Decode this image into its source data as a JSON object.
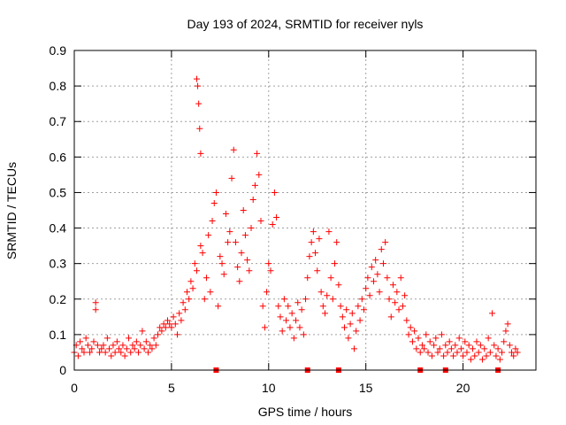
{
  "chart_data": {
    "type": "scatter",
    "title": "Day 193 of 2024, SRMTID for receiver nyls",
    "xlabel": "GPS time / hours",
    "ylabel": "SRMTID / TECUs",
    "xlim": [
      0,
      23.75
    ],
    "ylim": [
      0,
      0.9
    ],
    "xticks": [
      0,
      5,
      10,
      15,
      20
    ],
    "xtick_labels": [
      "0",
      "5",
      "10",
      "15",
      "20"
    ],
    "yticks": [
      0,
      0.1,
      0.2,
      0.3,
      0.4,
      0.5,
      0.6,
      0.7,
      0.8,
      0.9
    ],
    "ytick_labels": [
      "0",
      "0.1",
      "0.2",
      "0.3",
      "0.4",
      "0.5",
      "0.6",
      "0.7",
      "0.8",
      "0.9"
    ],
    "grid": true,
    "marker": "+",
    "series": [
      {
        "name": "SRMTID",
        "color": "#ff0000",
        "points": [
          [
            0.0,
            0.05
          ],
          [
            0.1,
            0.07
          ],
          [
            0.2,
            0.04
          ],
          [
            0.3,
            0.08
          ],
          [
            0.4,
            0.06
          ],
          [
            0.5,
            0.05
          ],
          [
            0.6,
            0.09
          ],
          [
            0.7,
            0.07
          ],
          [
            0.8,
            0.05
          ],
          [
            0.9,
            0.06
          ],
          [
            1.0,
            0.08
          ],
          [
            1.1,
            0.17
          ],
          [
            1.1,
            0.19
          ],
          [
            1.2,
            0.07
          ],
          [
            1.3,
            0.05
          ],
          [
            1.4,
            0.06
          ],
          [
            1.5,
            0.07
          ],
          [
            1.6,
            0.05
          ],
          [
            1.7,
            0.09
          ],
          [
            1.8,
            0.06
          ],
          [
            1.9,
            0.04
          ],
          [
            2.0,
            0.07
          ],
          [
            2.1,
            0.05
          ],
          [
            2.2,
            0.08
          ],
          [
            2.3,
            0.06
          ],
          [
            2.4,
            0.05
          ],
          [
            2.5,
            0.07
          ],
          [
            2.6,
            0.04
          ],
          [
            2.7,
            0.06
          ],
          [
            2.8,
            0.09
          ],
          [
            2.9,
            0.05
          ],
          [
            3.0,
            0.07
          ],
          [
            3.1,
            0.06
          ],
          [
            3.2,
            0.08
          ],
          [
            3.3,
            0.05
          ],
          [
            3.4,
            0.07
          ],
          [
            3.5,
            0.11
          ],
          [
            3.6,
            0.06
          ],
          [
            3.7,
            0.08
          ],
          [
            3.8,
            0.05
          ],
          [
            3.9,
            0.07
          ],
          [
            4.0,
            0.06
          ],
          [
            4.1,
            0.09
          ],
          [
            4.2,
            0.07
          ],
          [
            4.3,
            0.1
          ],
          [
            4.4,
            0.12
          ],
          [
            4.5,
            0.11
          ],
          [
            4.6,
            0.13
          ],
          [
            4.7,
            0.12
          ],
          [
            4.8,
            0.14
          ],
          [
            4.9,
            0.13
          ],
          [
            5.0,
            0.12
          ],
          [
            5.1,
            0.15
          ],
          [
            5.2,
            0.13
          ],
          [
            5.3,
            0.1
          ],
          [
            5.4,
            0.16
          ],
          [
            5.5,
            0.14
          ],
          [
            5.6,
            0.19
          ],
          [
            5.7,
            0.17
          ],
          [
            5.8,
            0.22
          ],
          [
            5.9,
            0.2
          ],
          [
            6.0,
            0.25
          ],
          [
            6.1,
            0.23
          ],
          [
            6.2,
            0.3
          ],
          [
            6.3,
            0.28
          ],
          [
            6.3,
            0.82
          ],
          [
            6.35,
            0.8
          ],
          [
            6.4,
            0.75
          ],
          [
            6.45,
            0.68
          ],
          [
            6.5,
            0.61
          ],
          [
            6.5,
            0.35
          ],
          [
            6.6,
            0.33
          ],
          [
            6.7,
            0.2
          ],
          [
            6.8,
            0.26
          ],
          [
            6.9,
            0.38
          ],
          [
            7.0,
            0.22
          ],
          [
            7.1,
            0.42
          ],
          [
            7.2,
            0.47
          ],
          [
            7.3,
            0.5
          ],
          [
            7.4,
            0.18
          ],
          [
            7.5,
            0.32
          ],
          [
            7.6,
            0.3
          ],
          [
            7.7,
            0.27
          ],
          [
            7.8,
            0.44
          ],
          [
            7.9,
            0.36
          ],
          [
            8.0,
            0.39
          ],
          [
            8.1,
            0.54
          ],
          [
            8.2,
            0.62
          ],
          [
            8.3,
            0.36
          ],
          [
            8.4,
            0.29
          ],
          [
            8.5,
            0.25
          ],
          [
            8.6,
            0.33
          ],
          [
            8.7,
            0.45
          ],
          [
            8.8,
            0.38
          ],
          [
            8.9,
            0.31
          ],
          [
            9.0,
            0.28
          ],
          [
            9.1,
            0.4
          ],
          [
            9.2,
            0.48
          ],
          [
            9.3,
            0.52
          ],
          [
            9.4,
            0.61
          ],
          [
            9.5,
            0.55
          ],
          [
            9.6,
            0.42
          ],
          [
            9.7,
            0.18
          ],
          [
            9.8,
            0.12
          ],
          [
            9.9,
            0.22
          ],
          [
            10.0,
            0.3
          ],
          [
            10.1,
            0.28
          ],
          [
            10.2,
            0.41
          ],
          [
            10.3,
            0.5
          ],
          [
            10.4,
            0.43
          ],
          [
            10.5,
            0.18
          ],
          [
            10.6,
            0.15
          ],
          [
            10.7,
            0.11
          ],
          [
            10.8,
            0.2
          ],
          [
            10.9,
            0.14
          ],
          [
            11.0,
            0.18
          ],
          [
            11.1,
            0.12
          ],
          [
            11.2,
            0.16
          ],
          [
            11.3,
            0.09
          ],
          [
            11.4,
            0.14
          ],
          [
            11.5,
            0.19
          ],
          [
            11.6,
            0.12
          ],
          [
            11.7,
            0.17
          ],
          [
            11.8,
            0.1
          ],
          [
            11.9,
            0.2
          ],
          [
            12.0,
            0.26
          ],
          [
            12.1,
            0.32
          ],
          [
            12.2,
            0.36
          ],
          [
            12.3,
            0.39
          ],
          [
            12.4,
            0.33
          ],
          [
            12.5,
            0.28
          ],
          [
            12.6,
            0.37
          ],
          [
            12.7,
            0.22
          ],
          [
            12.8,
            0.18
          ],
          [
            12.9,
            0.16
          ],
          [
            13.0,
            0.21
          ],
          [
            13.1,
            0.39
          ],
          [
            13.2,
            0.26
          ],
          [
            13.3,
            0.2
          ],
          [
            13.4,
            0.3
          ],
          [
            13.5,
            0.36
          ],
          [
            13.6,
            0.24
          ],
          [
            13.7,
            0.18
          ],
          [
            13.8,
            0.15
          ],
          [
            13.9,
            0.12
          ],
          [
            14.0,
            0.17
          ],
          [
            14.1,
            0.09
          ],
          [
            14.2,
            0.13
          ],
          [
            14.3,
            0.16
          ],
          [
            14.4,
            0.06
          ],
          [
            14.5,
            0.11
          ],
          [
            14.6,
            0.18
          ],
          [
            14.7,
            0.14
          ],
          [
            14.8,
            0.2
          ],
          [
            14.9,
            0.17
          ],
          [
            15.0,
            0.23
          ],
          [
            15.1,
            0.26
          ],
          [
            15.2,
            0.21
          ],
          [
            15.3,
            0.29
          ],
          [
            15.4,
            0.25
          ],
          [
            15.5,
            0.31
          ],
          [
            15.6,
            0.27
          ],
          [
            15.7,
            0.22
          ],
          [
            15.8,
            0.34
          ],
          [
            15.9,
            0.3
          ],
          [
            16.0,
            0.36
          ],
          [
            16.1,
            0.26
          ],
          [
            16.2,
            0.2
          ],
          [
            16.3,
            0.15
          ],
          [
            16.4,
            0.24
          ],
          [
            16.5,
            0.19
          ],
          [
            16.6,
            0.22
          ],
          [
            16.7,
            0.17
          ],
          [
            16.8,
            0.26
          ],
          [
            16.9,
            0.18
          ],
          [
            17.0,
            0.21
          ],
          [
            17.1,
            0.14
          ],
          [
            17.2,
            0.1
          ],
          [
            17.3,
            0.12
          ],
          [
            17.4,
            0.08
          ],
          [
            17.5,
            0.11
          ],
          [
            17.6,
            0.06
          ],
          [
            17.7,
            0.09
          ],
          [
            17.8,
            0.05
          ],
          [
            17.9,
            0.07
          ],
          [
            18.0,
            0.06
          ],
          [
            18.1,
            0.1
          ],
          [
            18.2,
            0.05
          ],
          [
            18.3,
            0.08
          ],
          [
            18.4,
            0.04
          ],
          [
            18.5,
            0.07
          ],
          [
            18.6,
            0.09
          ],
          [
            18.7,
            0.05
          ],
          [
            18.8,
            0.06
          ],
          [
            18.9,
            0.1
          ],
          [
            19.0,
            0.04
          ],
          [
            19.1,
            0.07
          ],
          [
            19.2,
            0.05
          ],
          [
            19.3,
            0.08
          ],
          [
            19.4,
            0.06
          ],
          [
            19.5,
            0.04
          ],
          [
            19.6,
            0.07
          ],
          [
            19.7,
            0.05
          ],
          [
            19.8,
            0.09
          ],
          [
            19.9,
            0.06
          ],
          [
            20.0,
            0.04
          ],
          [
            20.1,
            0.08
          ],
          [
            20.2,
            0.05
          ],
          [
            20.3,
            0.07
          ],
          [
            20.4,
            0.03
          ],
          [
            20.5,
            0.06
          ],
          [
            20.6,
            0.04
          ],
          [
            20.7,
            0.08
          ],
          [
            20.8,
            0.05
          ],
          [
            20.9,
            0.07
          ],
          [
            21.0,
            0.03
          ],
          [
            21.1,
            0.06
          ],
          [
            21.2,
            0.04
          ],
          [
            21.3,
            0.09
          ],
          [
            21.4,
            0.05
          ],
          [
            21.5,
            0.16
          ],
          [
            21.6,
            0.07
          ],
          [
            21.7,
            0.04
          ],
          [
            21.8,
            0.06
          ],
          [
            21.9,
            0.03
          ],
          [
            22.0,
            0.05
          ],
          [
            22.1,
            0.08
          ],
          [
            22.2,
            0.11
          ],
          [
            22.3,
            0.13
          ],
          [
            22.4,
            0.07
          ],
          [
            22.5,
            0.05
          ],
          [
            22.6,
            0.04
          ],
          [
            22.7,
            0.06
          ],
          [
            22.8,
            0.05
          ]
        ]
      }
    ],
    "axis_markers_x": [
      7.3,
      12.0,
      13.6,
      17.8,
      19.1,
      21.8
    ]
  }
}
